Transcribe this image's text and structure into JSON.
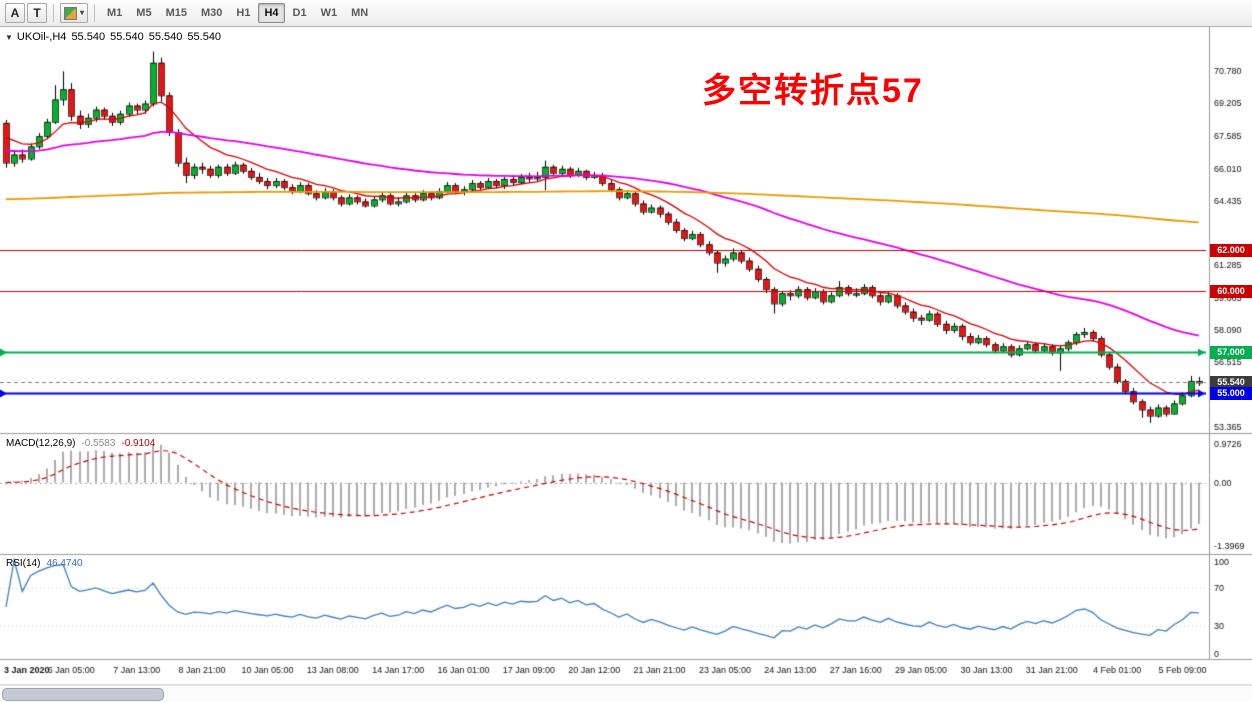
{
  "toolbar": {
    "tool_a": "A",
    "tool_t": "T",
    "timeframes": [
      {
        "label": "M1",
        "active": false
      },
      {
        "label": "M5",
        "active": false
      },
      {
        "label": "M15",
        "active": false
      },
      {
        "label": "M30",
        "active": false
      },
      {
        "label": "H1",
        "active": false
      },
      {
        "label": "H4",
        "active": true
      },
      {
        "label": "D1",
        "active": false
      },
      {
        "label": "W1",
        "active": false
      },
      {
        "label": "MN",
        "active": false
      }
    ]
  },
  "chart": {
    "title": {
      "symbol_period": "UKOil-,H4",
      "open": "55.540",
      "high": "55.540",
      "low": "55.540",
      "close": "55.540"
    },
    "annotation": {
      "text": "多空转折点57",
      "color": "#FF0000"
    }
  },
  "chart_data": {
    "type": "candlestick",
    "symbol": "UKOil-",
    "timeframe": "H4",
    "style": {
      "bull": "#00B42A",
      "bear": "#EE1111",
      "wick": "#000000",
      "ma_fast": "#D60000",
      "ma_mid": "#E400E4",
      "ma_slow": "#E89B00"
    },
    "y_ticks": [
      "70.780",
      "69.205",
      "67.585",
      "66.010",
      "64.435",
      "61.285",
      "59.665",
      "58.090",
      "56.515",
      "53.365"
    ],
    "x_labels": [
      "3 Jan 2020",
      "6 Jan 05:00",
      "7 Jan 13:00",
      "8 Jan 21:00",
      "10 Jan 05:00",
      "13 Jan 08:00",
      "14 Jan 17:00",
      "16 Jan 01:00",
      "17 Jan 09:00",
      "20 Jan 12:00",
      "21 Jan 21:00",
      "23 Jan 05:00",
      "24 Jan 13:00",
      "27 Jan 16:00",
      "29 Jan 05:00",
      "30 Jan 13:00",
      "31 Jan 21:00",
      "4 Feb 01:00",
      "5 Feb 09:00"
    ],
    "levels": [
      {
        "label": "62.000",
        "value": 62.0,
        "color": "#CC0000",
        "line_width": 1
      },
      {
        "label": "60.000",
        "value": 60.0,
        "color": "#CC0000",
        "line_width": 1
      },
      {
        "label": "57.000",
        "value": 57.0,
        "color": "#00B050",
        "line_width": 2
      },
      {
        "label": "55.000",
        "value": 55.0,
        "color": "#0000E8",
        "line_width": 2
      }
    ],
    "bid": {
      "label": "55.540",
      "value": 55.54,
      "badge_color": "#3C3C3C",
      "line_color": "#808080"
    },
    "indicators": {
      "macd": {
        "label": "MACD(12,26,9)",
        "main": "-0.5583",
        "signal": "-0.9104",
        "axis_labels": [
          "0.9726",
          "0.00",
          "-1.3969"
        ],
        "hist_color": "#ABABAB",
        "signal_color": "#C80000"
      },
      "rsi": {
        "label": "RSI(14)",
        "value": "46.4740",
        "axis_labels": [
          "100",
          "70",
          "30",
          "0"
        ],
        "color": "#3C7EBF",
        "levels": [
          70,
          30
        ]
      }
    },
    "ohlc": [
      [
        68.25,
        68.4,
        66.05,
        66.3
      ],
      [
        66.3,
        66.85,
        66.1,
        66.7
      ],
      [
        66.7,
        66.95,
        66.3,
        66.5
      ],
      [
        66.5,
        67.25,
        66.4,
        67.1
      ],
      [
        67.1,
        67.75,
        66.95,
        67.6
      ],
      [
        67.6,
        68.45,
        67.45,
        68.3
      ],
      [
        68.3,
        70.1,
        68.2,
        69.4
      ],
      [
        69.4,
        70.78,
        69.1,
        69.9
      ],
      [
        69.9,
        70.2,
        68.35,
        68.6
      ],
      [
        68.6,
        68.85,
        67.95,
        68.2
      ],
      [
        68.2,
        68.7,
        68.0,
        68.5
      ],
      [
        68.5,
        69.05,
        68.3,
        68.9
      ],
      [
        68.9,
        69.0,
        68.4,
        68.6
      ],
      [
        68.6,
        68.75,
        68.1,
        68.3
      ],
      [
        68.3,
        68.85,
        68.15,
        68.7
      ],
      [
        68.7,
        69.25,
        68.55,
        69.1
      ],
      [
        69.1,
        69.2,
        68.65,
        68.9
      ],
      [
        68.9,
        69.35,
        68.7,
        69.2
      ],
      [
        69.2,
        71.75,
        69.05,
        71.2
      ],
      [
        71.2,
        71.45,
        69.3,
        69.6
      ],
      [
        69.6,
        69.75,
        67.6,
        67.8
      ],
      [
        67.8,
        67.95,
        66.1,
        66.3
      ],
      [
        66.3,
        66.55,
        65.3,
        65.7
      ],
      [
        65.7,
        66.25,
        65.5,
        66.1
      ],
      [
        66.1,
        66.3,
        65.75,
        66.0
      ],
      [
        66.0,
        66.15,
        65.55,
        65.7
      ],
      [
        65.7,
        66.2,
        65.55,
        66.1
      ],
      [
        66.1,
        66.25,
        65.65,
        65.8
      ],
      [
        65.8,
        66.35,
        65.7,
        66.2
      ],
      [
        66.2,
        66.3,
        65.75,
        65.9
      ],
      [
        65.9,
        66.05,
        65.45,
        65.6
      ],
      [
        65.6,
        65.8,
        65.25,
        65.4
      ],
      [
        65.4,
        65.55,
        65.0,
        65.2
      ],
      [
        65.2,
        65.55,
        65.05,
        65.4
      ],
      [
        65.4,
        65.5,
        64.95,
        65.1
      ],
      [
        65.1,
        65.25,
        64.75,
        64.9
      ],
      [
        64.9,
        65.35,
        64.8,
        65.2
      ],
      [
        65.2,
        65.3,
        64.7,
        64.8
      ],
      [
        64.8,
        64.95,
        64.45,
        64.6
      ],
      [
        64.6,
        65.05,
        64.5,
        64.9
      ],
      [
        64.9,
        65.0,
        64.45,
        64.6
      ],
      [
        64.6,
        64.7,
        64.15,
        64.3
      ],
      [
        64.3,
        64.75,
        64.2,
        64.6
      ],
      [
        64.6,
        64.7,
        64.25,
        64.4
      ],
      [
        64.4,
        64.55,
        64.1,
        64.2
      ],
      [
        64.2,
        64.65,
        64.1,
        64.5
      ],
      [
        64.5,
        64.85,
        64.35,
        64.7
      ],
      [
        64.7,
        64.8,
        64.2,
        64.3
      ],
      [
        64.3,
        64.6,
        64.15,
        64.4
      ],
      [
        64.4,
        64.85,
        64.3,
        64.7
      ],
      [
        64.7,
        64.8,
        64.35,
        64.5
      ],
      [
        64.5,
        64.95,
        64.4,
        64.8
      ],
      [
        64.8,
        64.9,
        64.45,
        64.6
      ],
      [
        64.6,
        65.05,
        64.5,
        64.9
      ],
      [
        64.9,
        65.35,
        64.8,
        65.2
      ],
      [
        65.2,
        65.3,
        64.75,
        64.9
      ],
      [
        64.9,
        65.15,
        64.7,
        65.0
      ],
      [
        65.0,
        65.45,
        64.9,
        65.3
      ],
      [
        65.3,
        65.4,
        64.95,
        65.1
      ],
      [
        65.1,
        65.55,
        65.0,
        65.4
      ],
      [
        65.4,
        65.5,
        65.05,
        65.2
      ],
      [
        65.2,
        65.6,
        65.0,
        65.5
      ],
      [
        65.5,
        65.7,
        65.2,
        65.35
      ],
      [
        65.35,
        65.75,
        65.25,
        65.6
      ],
      [
        65.6,
        65.8,
        65.3,
        65.55
      ],
      [
        65.55,
        65.85,
        65.4,
        65.6
      ],
      [
        65.6,
        66.4,
        64.95,
        66.1
      ],
      [
        66.1,
        66.2,
        65.65,
        65.8
      ],
      [
        65.8,
        66.15,
        65.7,
        66.0
      ],
      [
        66.0,
        66.1,
        65.55,
        65.7
      ],
      [
        65.7,
        66.05,
        65.6,
        65.9
      ],
      [
        65.9,
        65.95,
        65.45,
        65.6
      ],
      [
        65.6,
        65.85,
        65.5,
        65.7
      ],
      [
        65.7,
        65.8,
        65.15,
        65.3
      ],
      [
        65.3,
        65.45,
        64.85,
        65.0
      ],
      [
        65.0,
        65.1,
        64.45,
        64.6
      ],
      [
        64.6,
        64.95,
        64.5,
        64.8
      ],
      [
        64.8,
        64.9,
        64.15,
        64.3
      ],
      [
        64.3,
        64.45,
        63.75,
        63.9
      ],
      [
        63.9,
        64.25,
        63.8,
        64.1
      ],
      [
        64.1,
        64.2,
        63.6,
        63.8
      ],
      [
        63.8,
        63.9,
        63.25,
        63.4
      ],
      [
        63.4,
        63.55,
        62.85,
        63.0
      ],
      [
        63.0,
        63.1,
        62.45,
        62.6
      ],
      [
        62.6,
        62.95,
        62.5,
        62.8
      ],
      [
        62.8,
        62.9,
        62.15,
        62.3
      ],
      [
        62.3,
        62.45,
        61.75,
        61.9
      ],
      [
        61.9,
        62.0,
        60.9,
        61.4
      ],
      [
        61.4,
        61.75,
        61.2,
        61.6
      ],
      [
        61.6,
        62.1,
        61.45,
        61.9
      ],
      [
        61.9,
        62.0,
        61.35,
        61.5
      ],
      [
        61.5,
        61.65,
        60.95,
        61.1
      ],
      [
        61.1,
        61.25,
        60.45,
        60.6
      ],
      [
        60.6,
        60.7,
        59.9,
        60.1
      ],
      [
        60.1,
        60.2,
        58.9,
        59.4
      ],
      [
        59.4,
        60.0,
        59.25,
        59.9
      ],
      [
        59.9,
        60.05,
        59.55,
        59.8
      ],
      [
        59.8,
        60.25,
        59.65,
        60.1
      ],
      [
        60.1,
        60.2,
        59.55,
        59.7
      ],
      [
        59.7,
        60.15,
        59.6,
        60.0
      ],
      [
        60.0,
        60.1,
        59.35,
        59.5
      ],
      [
        59.5,
        59.95,
        59.4,
        59.8
      ],
      [
        59.8,
        60.5,
        59.7,
        60.2
      ],
      [
        60.2,
        60.3,
        59.75,
        59.9
      ],
      [
        59.9,
        60.15,
        59.7,
        59.9
      ],
      [
        59.9,
        60.35,
        59.8,
        60.2
      ],
      [
        60.2,
        60.3,
        59.65,
        59.8
      ],
      [
        59.8,
        59.9,
        59.3,
        59.5
      ],
      [
        59.5,
        59.95,
        59.4,
        59.8
      ],
      [
        59.8,
        59.9,
        59.15,
        59.3
      ],
      [
        59.3,
        59.45,
        58.85,
        59.0
      ],
      [
        59.0,
        59.15,
        58.5,
        58.7
      ],
      [
        58.7,
        58.85,
        58.35,
        58.6
      ],
      [
        58.6,
        59.05,
        58.5,
        58.9
      ],
      [
        58.9,
        59.0,
        58.25,
        58.4
      ],
      [
        58.4,
        58.55,
        57.9,
        58.1
      ],
      [
        58.1,
        58.45,
        57.95,
        58.3
      ],
      [
        58.3,
        58.4,
        57.6,
        57.8
      ],
      [
        57.8,
        57.95,
        57.35,
        57.5
      ],
      [
        57.5,
        57.85,
        57.4,
        57.7
      ],
      [
        57.7,
        57.8,
        57.25,
        57.4
      ],
      [
        57.4,
        57.5,
        56.95,
        57.1
      ],
      [
        57.1,
        57.45,
        57.0,
        57.3
      ],
      [
        57.3,
        57.4,
        56.75,
        56.9
      ],
      [
        56.9,
        57.35,
        56.8,
        57.2
      ],
      [
        57.2,
        57.55,
        57.1,
        57.4
      ],
      [
        57.4,
        57.5,
        56.95,
        57.1
      ],
      [
        57.1,
        57.45,
        57.0,
        57.3
      ],
      [
        57.3,
        57.4,
        56.85,
        57.0
      ],
      [
        57.0,
        57.35,
        56.1,
        57.2
      ],
      [
        57.2,
        57.6,
        57.05,
        57.5
      ],
      [
        57.5,
        58.0,
        57.35,
        57.9
      ],
      [
        57.9,
        58.2,
        57.7,
        58.0
      ],
      [
        58.0,
        58.1,
        57.55,
        57.7
      ],
      [
        57.7,
        57.8,
        56.75,
        56.9
      ],
      [
        56.9,
        57.0,
        56.15,
        56.3
      ],
      [
        56.3,
        56.45,
        55.45,
        55.6
      ],
      [
        55.6,
        55.7,
        54.95,
        55.1
      ],
      [
        55.1,
        55.25,
        54.45,
        54.6
      ],
      [
        54.6,
        54.7,
        53.8,
        54.2
      ],
      [
        54.2,
        54.35,
        53.55,
        53.9
      ],
      [
        53.9,
        54.45,
        53.8,
        54.3
      ],
      [
        54.3,
        54.4,
        53.85,
        54.0
      ],
      [
        54.0,
        54.65,
        53.95,
        54.5
      ],
      [
        54.5,
        55.05,
        54.4,
        54.9
      ],
      [
        54.9,
        55.85,
        54.8,
        55.6
      ],
      [
        55.6,
        55.8,
        55.35,
        55.54
      ]
    ]
  }
}
